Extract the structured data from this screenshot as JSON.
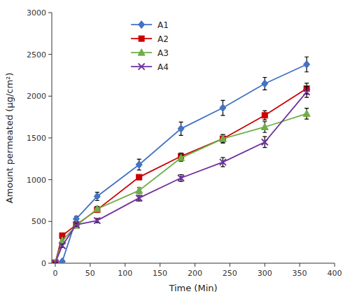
{
  "chart_data": {
    "type": "line",
    "xlabel": "Time (Min)",
    "ylabel": "Amount permeated (μg/cm²)",
    "xlim": [
      -5,
      400
    ],
    "ylim": [
      0,
      3000
    ],
    "xticks": [
      0,
      50,
      100,
      150,
      200,
      250,
      300,
      350,
      400
    ],
    "yticks": [
      0,
      500,
      1000,
      1500,
      2000,
      2500,
      3000
    ],
    "x": [
      0,
      10,
      30,
      60,
      120,
      180,
      240,
      300,
      360
    ],
    "legend": "upper left",
    "series": [
      {
        "name": "A1",
        "color": "#4472C4",
        "marker": "diamond",
        "values": [
          5,
          20,
          530,
          800,
          1180,
          1610,
          1860,
          2150,
          2380
        ],
        "yerr": [
          5,
          10,
          30,
          50,
          65,
          80,
          90,
          75,
          90
        ]
      },
      {
        "name": "A2",
        "color": "#CC0000",
        "marker": "square",
        "values": [
          5,
          330,
          460,
          640,
          1030,
          1280,
          1490,
          1770,
          2090
        ],
        "yerr": [
          5,
          20,
          20,
          30,
          30,
          40,
          50,
          55,
          65
        ]
      },
      {
        "name": "A3",
        "color": "#70AD47",
        "marker": "triangle",
        "values": [
          5,
          270,
          450,
          650,
          870,
          1260,
          1490,
          1630,
          1790
        ],
        "yerr": [
          5,
          20,
          20,
          30,
          35,
          40,
          50,
          65,
          65
        ]
      },
      {
        "name": "A4",
        "color": "#7030A0",
        "marker": "x",
        "values": [
          5,
          210,
          460,
          510,
          780,
          1020,
          1210,
          1450,
          2050
        ],
        "yerr": [
          5,
          20,
          20,
          25,
          35,
          40,
          55,
          65,
          65
        ]
      }
    ]
  }
}
